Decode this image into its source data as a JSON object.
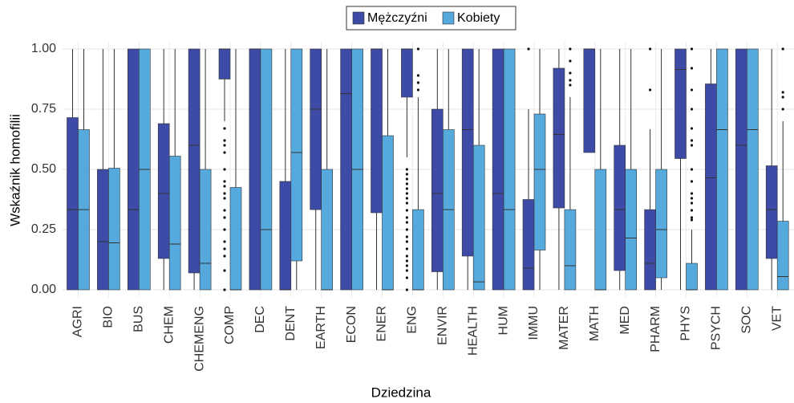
{
  "chart_data": {
    "type": "box",
    "x_label": "Dziedzina",
    "y_label": "Wskaźnik homofilii",
    "categories": [
      "AGRI",
      "BIO",
      "BUS",
      "CHEM",
      "CHEMENG",
      "COMP",
      "DEC",
      "DENT",
      "EARTH",
      "ECON",
      "ENER",
      "ENG",
      "ENVIR",
      "HEALTH",
      "HUM",
      "IMMU",
      "MATER",
      "MATH",
      "MED",
      "PHARM",
      "PHYS",
      "PSYCH",
      "SOC",
      "VET"
    ],
    "ylim": [
      -0.03,
      1.03
    ],
    "yticks": [
      {
        "value": 0,
        "label": "0.00"
      },
      {
        "value": 0.25,
        "label": "0.25"
      },
      {
        "value": 0.5,
        "label": "0.50"
      },
      {
        "value": 0.75,
        "label": "0.75"
      },
      {
        "value": 1,
        "label": "1.00"
      }
    ],
    "grid": true,
    "legend": "top",
    "series": [
      {
        "name": "Mężczyźni",
        "color": "#3d4ba6",
        "low": [
          0,
          0,
          0,
          0,
          0,
          0.7,
          0,
          0,
          0,
          0,
          0,
          0.55,
          0,
          0,
          0,
          0,
          0,
          0.57,
          0,
          0,
          0,
          0,
          0,
          0
        ],
        "q1": [
          0,
          0,
          0,
          0.13,
          0.07,
          0.875,
          0,
          0,
          0.333,
          0,
          0.32,
          0.8,
          0.075,
          0.14,
          0,
          0,
          0.34,
          0.57,
          0.08,
          0,
          0.545,
          0,
          0,
          0.13
        ],
        "median": [
          0.333,
          0.2,
          0.333,
          0.4,
          0.6,
          1,
          1,
          0,
          0.75,
          0.815,
          1,
          1,
          0.4,
          0.665,
          0.4,
          0.09,
          0.645,
          1,
          0.333,
          0.11,
          0.915,
          0.465,
          0.6,
          0.333
        ],
        "q3": [
          0.715,
          0.5,
          1,
          0.69,
          1,
          1,
          1,
          0.45,
          1,
          1,
          1,
          1,
          0.75,
          1,
          1,
          0.375,
          0.92,
          1,
          0.6,
          0.333,
          1,
          0.855,
          1,
          0.515
        ],
        "high": [
          1,
          1,
          1,
          1,
          1,
          1,
          1,
          1,
          1,
          1,
          1,
          1,
          1,
          1,
          1,
          0.75,
          1,
          1,
          1,
          0.667,
          1,
          1,
          1,
          1
        ],
        "outliers": [
          [],
          [],
          [],
          [],
          [],
          [
            0.67,
            0.62,
            0.6,
            0.57,
            0.5,
            0.45,
            0.43,
            0.4,
            0.38,
            0.33,
            0.3,
            0.25,
            0.2,
            0.17,
            0.14,
            0.08,
            0
          ],
          [],
          [],
          [],
          [],
          [],
          [
            0.5,
            0.48,
            0.46,
            0.44,
            0.42,
            0.4,
            0.38,
            0.36,
            0.33,
            0.3,
            0.28,
            0.25,
            0.22,
            0.2,
            0.17,
            0.14,
            0.12,
            0.1,
            0.08,
            0.05,
            0
          ],
          [],
          [],
          [],
          [
            1
          ],
          [],
          [],
          [],
          [
            1,
            0.83
          ],
          [],
          [],
          [],
          []
        ]
      },
      {
        "name": "Kobiety",
        "color": "#56a9dd",
        "low": [
          0,
          0,
          0,
          0,
          0,
          0,
          0,
          0,
          0,
          0,
          0,
          0,
          0,
          0,
          0,
          0,
          0,
          0,
          0,
          0,
          0,
          0,
          0,
          0
        ],
        "q1": [
          0,
          0,
          0,
          0,
          0,
          0,
          0,
          0.12,
          0,
          0,
          0,
          0,
          0,
          0,
          0,
          0.165,
          0,
          0,
          0,
          0.05,
          0,
          0,
          0,
          0
        ],
        "median": [
          0.333,
          0.195,
          0.5,
          0.19,
          0.11,
          0,
          0.25,
          0.57,
          0,
          0.5,
          0,
          0,
          0.333,
          0.033,
          0.333,
          0.5,
          0.1,
          0,
          0.215,
          0.25,
          0,
          0.665,
          0.665,
          0.055
        ],
        "q3": [
          0.665,
          0.505,
          1,
          0.555,
          0.5,
          0.425,
          1,
          1,
          0.5,
          1,
          0.64,
          0.333,
          0.665,
          0.6,
          1,
          0.73,
          0.333,
          0.5,
          0.5,
          0.5,
          0.11,
          1,
          1,
          0.285
        ],
        "high": [
          1,
          1,
          1,
          1,
          1,
          1,
          1,
          1,
          1,
          1,
          1,
          0.8,
          1,
          1,
          1,
          1,
          0.8,
          1,
          1,
          1,
          0.25,
          1,
          1,
          0.7
        ],
        "outliers": [
          [],
          [],
          [],
          [],
          [],
          [],
          [],
          [],
          [],
          [],
          [],
          [
            1,
            0.89,
            0.86,
            0.83
          ],
          [],
          [],
          [],
          [],
          [
            1,
            0.95,
            0.9,
            0.87,
            0.85
          ],
          [],
          [],
          [],
          [
            1,
            0.92,
            0.83,
            0.75,
            0.67,
            0.62,
            0.6,
            0.5,
            0.45,
            0.4,
            0.38,
            0.36,
            0.33,
            0.3,
            0.29
          ],
          [],
          [],
          [
            1,
            0.82,
            0.8,
            0.75
          ]
        ]
      }
    ]
  }
}
